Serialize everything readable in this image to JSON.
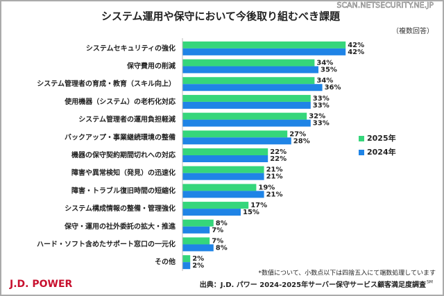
{
  "chart_data": {
    "type": "hbar",
    "title": "システム運用や保守において今後取り組むべき課題",
    "subtitle": "（複数回答）",
    "categories": [
      "システムセキュリティの強化",
      "保守費用の削減",
      "システム管理者の育成・教育（スキル向上）",
      "使用機器（システム）の老朽化対応",
      "システム管理者の運用負担軽減",
      "バックアップ・事業継続環境の整備",
      "機器の保守契約期間切れへの対応",
      "障害や異常検知（発見）の迅速化",
      "障害・トラブル復旧時間の短縮化",
      "システム構成情報の整備・管理強化",
      "保守・運用の社外委託の拡大・推進",
      "ハード・ソフト含めたサポート窓口の一元化",
      "その他"
    ],
    "series": [
      {
        "name": "2025年",
        "color": "#35d67b",
        "values": [
          42,
          34,
          34,
          33,
          32,
          27,
          22,
          21,
          19,
          17,
          8,
          7,
          2
        ],
        "value_labels": [
          "42%",
          "34%",
          "34%",
          "33%",
          "32%",
          "27%",
          "22%",
          "21%",
          "19%",
          "17%",
          "8%",
          "7%",
          "2%"
        ]
      },
      {
        "name": "2024年",
        "color": "#1f84e6",
        "values": [
          42,
          35,
          36,
          33,
          33,
          28,
          22,
          21,
          21,
          15,
          7,
          8,
          2
        ],
        "value_labels": [
          "42%",
          "35%",
          "36%",
          "33%",
          "33%",
          "28%",
          "22%",
          "21%",
          "21%",
          "15%",
          "7%",
          "8%",
          "2%"
        ]
      }
    ],
    "xlim": [
      0,
      45
    ],
    "legend": "right",
    "note": "*数値について、小数点以下は四捨五入にて端数処理しています",
    "source": "出典：J.D. パワー 2024-2025年サーバー保守サービス顧客満足度調査",
    "source_mark": "SM",
    "logo": "J.D. POWER",
    "watermark": "SCAN.NETSECURITY.NE.JP"
  }
}
